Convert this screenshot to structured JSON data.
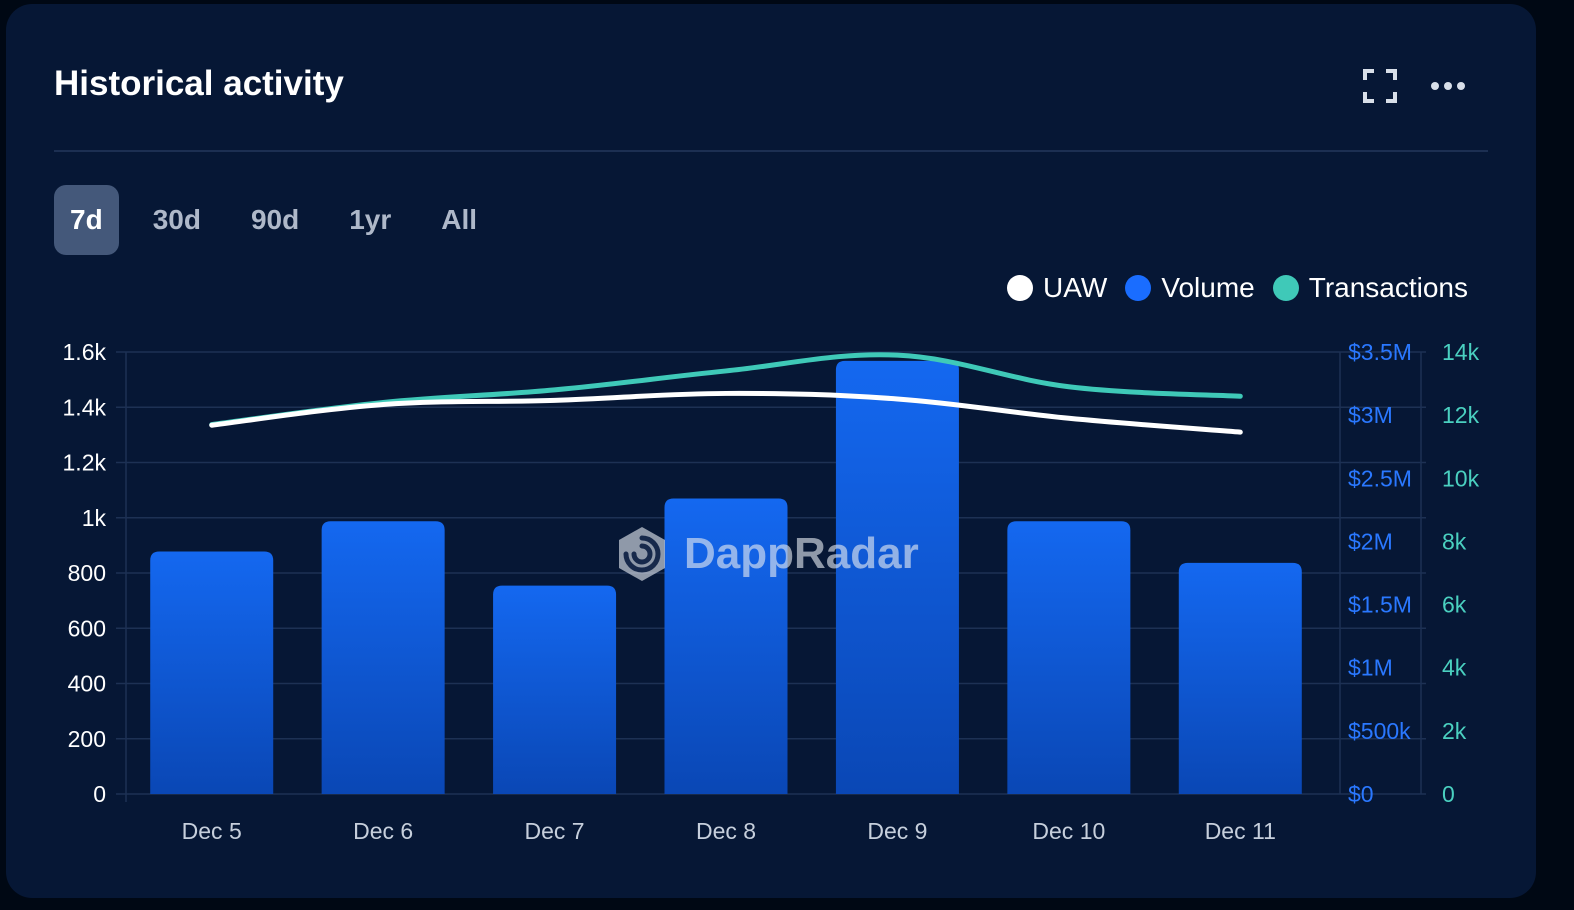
{
  "title": "Historical activity",
  "actions": {
    "expand_icon": "expand-icon",
    "more_icon": "more-horizontal-icon"
  },
  "tabs": [
    {
      "label": "7d",
      "active": true
    },
    {
      "label": "30d",
      "active": false
    },
    {
      "label": "90d",
      "active": false
    },
    {
      "label": "1yr",
      "active": false
    },
    {
      "label": "All",
      "active": false
    }
  ],
  "legend": [
    {
      "label": "UAW",
      "color": "#ffffff"
    },
    {
      "label": "Volume",
      "color": "#1a6dff"
    },
    {
      "label": "Transactions",
      "color": "#3fc9b8"
    }
  ],
  "watermark": "DappRadar",
  "colors": {
    "card_bg": "#061735",
    "bar_top": "#1468f0",
    "bar_bottom": "#0a47b5",
    "uaw": "#ffffff",
    "transactions": "#3fc9b8",
    "volume_axis": "#2a78ff",
    "transactions_axis": "#4ad0c0",
    "left_axis": "#ffffff",
    "x_axis": "#c6cfdc"
  },
  "chart_data": {
    "type": "bar",
    "categories": [
      "Dec 5",
      "Dec 6",
      "Dec 7",
      "Dec 8",
      "Dec 9",
      "Dec 10",
      "Dec 11"
    ],
    "series": [
      {
        "name": "Volume",
        "type": "bar",
        "axis": "volume",
        "values": [
          1920000,
          2160000,
          1650000,
          2340000,
          3430000,
          2160000,
          1830000
        ]
      },
      {
        "name": "UAW",
        "type": "line",
        "axis": "uaw",
        "values": [
          1335,
          1410,
          1425,
          1450,
          1430,
          1360,
          1310
        ]
      },
      {
        "name": "Transactions",
        "type": "line",
        "axis": "transactions",
        "values": [
          11700,
          12400,
          12800,
          13400,
          13900,
          12900,
          12600
        ]
      }
    ],
    "axes": {
      "uaw": {
        "min": 0,
        "max": 1600,
        "ticks": [
          0,
          200,
          400,
          600,
          800,
          1000,
          1200,
          1400,
          1600
        ],
        "tick_labels": [
          "0",
          "200",
          "400",
          "600",
          "800",
          "1k",
          "1.2k",
          "1.4k",
          "1.6k"
        ]
      },
      "volume": {
        "min": 0,
        "max": 3500000,
        "ticks": [
          0,
          500000,
          1000000,
          1500000,
          2000000,
          2500000,
          3000000,
          3500000
        ],
        "tick_labels": [
          "$0",
          "$500k",
          "$1M",
          "$1.5M",
          "$2M",
          "$2.5M",
          "$3M",
          "$3.5M"
        ]
      },
      "transactions": {
        "min": 0,
        "max": 14000,
        "ticks": [
          0,
          2000,
          4000,
          6000,
          8000,
          10000,
          12000,
          14000
        ],
        "tick_labels": [
          "0",
          "2k",
          "4k",
          "6k",
          "8k",
          "10k",
          "12k",
          "14k"
        ]
      }
    },
    "grid": true,
    "legend_position": "top-right"
  }
}
